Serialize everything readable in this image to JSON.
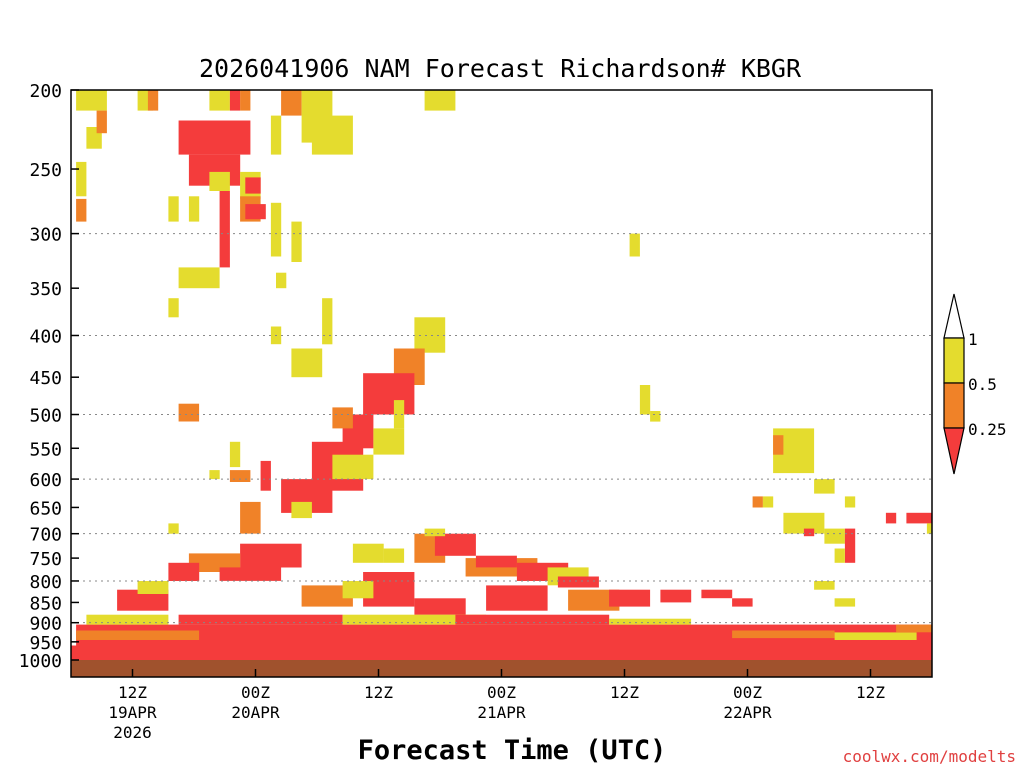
{
  "chart_data": {
    "type": "heatmap",
    "title": "2026041906 NAM Forecast Richardson# KBGR",
    "xlabel": "Forecast Time (UTC)",
    "ylabel": "",
    "credit": "coolwx.com/modelts",
    "y_scale": "log",
    "y_inverted": true,
    "y_range": [
      200,
      1000
    ],
    "y_ticks": [
      "200",
      "250",
      "300",
      "350",
      "400",
      "450",
      "500",
      "550",
      "600",
      "650",
      "700",
      "750",
      "800",
      "850",
      "900",
      "950",
      "1000"
    ],
    "y_gridlines": [
      300,
      400,
      500,
      600,
      700,
      800,
      900
    ],
    "x_ticks": [
      {
        "hour": 6,
        "label": "12Z",
        "date": "19APR",
        "year": "2026"
      },
      {
        "hour": 18,
        "label": "00Z",
        "date": "20APR",
        "year": ""
      },
      {
        "hour": 30,
        "label": "12Z",
        "date": "",
        "year": ""
      },
      {
        "hour": 42,
        "label": "00Z",
        "date": "21APR",
        "year": ""
      },
      {
        "hour": 54,
        "label": "12Z",
        "date": "",
        "year": ""
      },
      {
        "hour": 66,
        "label": "00Z",
        "date": "22APR",
        "year": ""
      },
      {
        "hour": 78,
        "label": "12Z",
        "date": "",
        "year": ""
      }
    ],
    "x_range_hours": [
      0,
      84
    ],
    "legend": {
      "placement": "right",
      "labels": [
        "1",
        "0.5",
        "0.25"
      ],
      "classes": [
        {
          "range": "0.5-1",
          "color": "#e4dc2e"
        },
        {
          "range": "0.25-0.5",
          "color": "#f08228"
        },
        {
          "range": "<0.25",
          "color": "#f43c3c"
        }
      ]
    },
    "colors": {
      "yellow": "#e4dc2e",
      "orange": "#f08228",
      "red": "#f43c3c",
      "ground": "#a0522d"
    },
    "regions": [
      {
        "c": "y",
        "h0": 0.5,
        "h1": 3.5,
        "p0": 200,
        "p1": 212
      },
      {
        "c": "y",
        "h0": 6.5,
        "h1": 8,
        "p0": 200,
        "p1": 212
      },
      {
        "c": "o",
        "h0": 7.5,
        "h1": 8.5,
        "p0": 200,
        "p1": 212
      },
      {
        "c": "y",
        "h0": 13.5,
        "h1": 15.5,
        "p0": 200,
        "p1": 212
      },
      {
        "c": "r",
        "h0": 15.5,
        "h1": 16.5,
        "p0": 200,
        "p1": 212
      },
      {
        "c": "o",
        "h0": 16.5,
        "h1": 17.5,
        "p0": 200,
        "p1": 212
      },
      {
        "c": "o",
        "h0": 20.5,
        "h1": 22.5,
        "p0": 200,
        "p1": 215
      },
      {
        "c": "y",
        "h0": 22.5,
        "h1": 25.5,
        "p0": 200,
        "p1": 232
      },
      {
        "c": "y",
        "h0": 23.5,
        "h1": 27.5,
        "p0": 215,
        "p1": 240
      },
      {
        "c": "y",
        "h0": 34.5,
        "h1": 37.5,
        "p0": 200,
        "p1": 212
      },
      {
        "c": "y",
        "h0": 1.5,
        "h1": 3,
        "p0": 222,
        "p1": 236
      },
      {
        "c": "o",
        "h0": 2.5,
        "h1": 3.5,
        "p0": 212,
        "p1": 226
      },
      {
        "c": "r",
        "h0": 10.5,
        "h1": 17.5,
        "p0": 218,
        "p1": 240
      },
      {
        "c": "r",
        "h0": 11.5,
        "h1": 16.5,
        "p0": 240,
        "p1": 262
      },
      {
        "c": "y",
        "h0": 13.5,
        "h1": 15.5,
        "p0": 252,
        "p1": 266
      },
      {
        "c": "y",
        "h0": 16.5,
        "h1": 18.5,
        "p0": 252,
        "p1": 272
      },
      {
        "c": "r",
        "h0": 17,
        "h1": 18.5,
        "p0": 256,
        "p1": 268
      },
      {
        "c": "y",
        "h0": 19.5,
        "h1": 20.5,
        "p0": 215,
        "p1": 240
      },
      {
        "c": "y",
        "h0": 0.5,
        "h1": 1.5,
        "p0": 245,
        "p1": 270
      },
      {
        "c": "o",
        "h0": 0.5,
        "h1": 1.5,
        "p0": 272,
        "p1": 290
      },
      {
        "c": "y",
        "h0": 9.5,
        "h1": 10.5,
        "p0": 270,
        "p1": 290
      },
      {
        "c": "y",
        "h0": 11.5,
        "h1": 12.5,
        "p0": 270,
        "p1": 290
      },
      {
        "c": "r",
        "h0": 14.5,
        "h1": 15.5,
        "p0": 266,
        "p1": 330
      },
      {
        "c": "o",
        "h0": 16.5,
        "h1": 18.5,
        "p0": 270,
        "p1": 290
      },
      {
        "c": "r",
        "h0": 17,
        "h1": 19,
        "p0": 276,
        "p1": 288
      },
      {
        "c": "y",
        "h0": 19.5,
        "h1": 20.5,
        "p0": 275,
        "p1": 320
      },
      {
        "c": "y",
        "h0": 21.5,
        "h1": 22.5,
        "p0": 290,
        "p1": 325
      },
      {
        "c": "y",
        "h0": 10.5,
        "h1": 14.5,
        "p0": 330,
        "p1": 350
      },
      {
        "c": "y",
        "h0": 20,
        "h1": 21,
        "p0": 335,
        "p1": 350
      },
      {
        "c": "y",
        "h0": 9.5,
        "h1": 10.5,
        "p0": 360,
        "p1": 380
      },
      {
        "c": "y",
        "h0": 24.5,
        "h1": 25.5,
        "p0": 360,
        "p1": 410
      },
      {
        "c": "y",
        "h0": 19.5,
        "h1": 20.5,
        "p0": 390,
        "p1": 410
      },
      {
        "c": "y",
        "h0": 21.5,
        "h1": 24.5,
        "p0": 415,
        "p1": 450
      },
      {
        "c": "y",
        "h0": 33.5,
        "h1": 36.5,
        "p0": 380,
        "p1": 420
      },
      {
        "c": "o",
        "h0": 31.5,
        "h1": 34.5,
        "p0": 415,
        "p1": 460
      },
      {
        "c": "r",
        "h0": 28.5,
        "h1": 33.5,
        "p0": 445,
        "p1": 500
      },
      {
        "c": "r",
        "h0": 26.5,
        "h1": 29.5,
        "p0": 500,
        "p1": 550
      },
      {
        "c": "o",
        "h0": 25.5,
        "h1": 27.5,
        "p0": 490,
        "p1": 520
      },
      {
        "c": "r",
        "h0": 23.5,
        "h1": 28.5,
        "p0": 540,
        "p1": 620
      },
      {
        "c": "r",
        "h0": 20.5,
        "h1": 25.5,
        "p0": 600,
        "p1": 660
      },
      {
        "c": "y",
        "h0": 29.5,
        "h1": 32.5,
        "p0": 520,
        "p1": 560
      },
      {
        "c": "y",
        "h0": 25.5,
        "h1": 29.5,
        "p0": 560,
        "p1": 600
      },
      {
        "c": "y",
        "h0": 31.5,
        "h1": 32.5,
        "p0": 480,
        "p1": 520
      },
      {
        "c": "o",
        "h0": 10.5,
        "h1": 12.5,
        "p0": 485,
        "p1": 510
      },
      {
        "c": "y",
        "h0": 15.5,
        "h1": 16.5,
        "p0": 540,
        "p1": 580
      },
      {
        "c": "o",
        "h0": 15.5,
        "h1": 17.5,
        "p0": 585,
        "p1": 605
      },
      {
        "c": "y",
        "h0": 13.5,
        "h1": 14.5,
        "p0": 585,
        "p1": 600
      },
      {
        "c": "r",
        "h0": 18.5,
        "h1": 19.5,
        "p0": 570,
        "p1": 620
      },
      {
        "c": "o",
        "h0": 16.5,
        "h1": 18.5,
        "p0": 640,
        "p1": 700
      },
      {
        "c": "y",
        "h0": 21.5,
        "h1": 23.5,
        "p0": 640,
        "p1": 670
      },
      {
        "c": "y",
        "h0": 9.5,
        "h1": 10.5,
        "p0": 680,
        "p1": 700
      },
      {
        "c": "y",
        "h0": 54.5,
        "h1": 55.5,
        "p0": 300,
        "p1": 320
      },
      {
        "c": "y",
        "h0": 55.5,
        "h1": 56.5,
        "p0": 460,
        "p1": 500
      },
      {
        "c": "y",
        "h0": 56.5,
        "h1": 57.5,
        "p0": 495,
        "p1": 510
      },
      {
        "c": "y",
        "h0": 68.5,
        "h1": 72.5,
        "p0": 520,
        "p1": 590
      },
      {
        "c": "o",
        "h0": 68.5,
        "h1": 69.5,
        "p0": 530,
        "p1": 560
      },
      {
        "c": "y",
        "h0": 72.5,
        "h1": 74.5,
        "p0": 600,
        "p1": 625
      },
      {
        "c": "o",
        "h0": 66.5,
        "h1": 67.5,
        "p0": 630,
        "p1": 650
      },
      {
        "c": "y",
        "h0": 67.5,
        "h1": 68.5,
        "p0": 630,
        "p1": 650
      },
      {
        "c": "y",
        "h0": 75.5,
        "h1": 76.5,
        "p0": 630,
        "p1": 650
      },
      {
        "c": "y",
        "h0": 69.5,
        "h1": 73.5,
        "p0": 660,
        "p1": 700
      },
      {
        "c": "r",
        "h0": 71.5,
        "h1": 72.5,
        "p0": 690,
        "p1": 705
      },
      {
        "c": "y",
        "h0": 73.5,
        "h1": 75.5,
        "p0": 690,
        "p1": 720
      },
      {
        "c": "r",
        "h0": 75.5,
        "h1": 76.5,
        "p0": 690,
        "p1": 760
      },
      {
        "c": "y",
        "h0": 74.5,
        "h1": 75.5,
        "p0": 730,
        "p1": 760
      },
      {
        "c": "r",
        "h0": 79.5,
        "h1": 80.5,
        "p0": 660,
        "p1": 680
      },
      {
        "c": "r",
        "h0": 81.5,
        "h1": 84,
        "p0": 660,
        "p1": 680
      },
      {
        "c": "y",
        "h0": 83.5,
        "h1": 84,
        "p0": 680,
        "p1": 700
      },
      {
        "c": "o",
        "h0": 33.5,
        "h1": 36.5,
        "p0": 700,
        "p1": 760
      },
      {
        "c": "r",
        "h0": 35.5,
        "h1": 39.5,
        "p0": 700,
        "p1": 745
      },
      {
        "c": "y",
        "h0": 34.5,
        "h1": 36.5,
        "p0": 690,
        "p1": 705
      },
      {
        "c": "y",
        "h0": 27.5,
        "h1": 30.5,
        "p0": 720,
        "p1": 760
      },
      {
        "c": "y",
        "h0": 30.5,
        "h1": 32.5,
        "p0": 730,
        "p1": 760
      },
      {
        "c": "r",
        "h0": 16.5,
        "h1": 22.5,
        "p0": 720,
        "p1": 770
      },
      {
        "c": "o",
        "h0": 11.5,
        "h1": 16.5,
        "p0": 740,
        "p1": 780
      },
      {
        "c": "r",
        "h0": 9.5,
        "h1": 12.5,
        "p0": 760,
        "p1": 800
      },
      {
        "c": "r",
        "h0": 14.5,
        "h1": 20.5,
        "p0": 770,
        "p1": 800
      },
      {
        "c": "o",
        "h0": 38.5,
        "h1": 45.5,
        "p0": 750,
        "p1": 790
      },
      {
        "c": "r",
        "h0": 39.5,
        "h1": 43.5,
        "p0": 745,
        "p1": 770
      },
      {
        "c": "r",
        "h0": 43.5,
        "h1": 48.5,
        "p0": 760,
        "p1": 800
      },
      {
        "c": "y",
        "h0": 46.5,
        "h1": 50.5,
        "p0": 770,
        "p1": 810
      },
      {
        "c": "r",
        "h0": 47.5,
        "h1": 51.5,
        "p0": 790,
        "p1": 815
      },
      {
        "c": "o",
        "h0": 48.5,
        "h1": 53.5,
        "p0": 820,
        "p1": 870
      },
      {
        "c": "r",
        "h0": 40.5,
        "h1": 46.5,
        "p0": 810,
        "p1": 870
      },
      {
        "c": "r",
        "h0": 52.5,
        "h1": 56.5,
        "p0": 820,
        "p1": 860
      },
      {
        "c": "r",
        "h0": 57.5,
        "h1": 60.5,
        "p0": 820,
        "p1": 850
      },
      {
        "c": "r",
        "h0": 61.5,
        "h1": 64.5,
        "p0": 820,
        "p1": 840
      },
      {
        "c": "r",
        "h0": 64.5,
        "h1": 66.5,
        "p0": 840,
        "p1": 860
      },
      {
        "c": "y",
        "h0": 72.5,
        "h1": 74.5,
        "p0": 800,
        "p1": 820
      },
      {
        "c": "y",
        "h0": 74.5,
        "h1": 76.5,
        "p0": 840,
        "p1": 860
      },
      {
        "c": "r",
        "h0": 28.5,
        "h1": 33.5,
        "p0": 780,
        "p1": 860
      },
      {
        "c": "o",
        "h0": 22.5,
        "h1": 27.5,
        "p0": 810,
        "p1": 860
      },
      {
        "c": "y",
        "h0": 26.5,
        "h1": 29.5,
        "p0": 800,
        "p1": 840
      },
      {
        "c": "r",
        "h0": 33.5,
        "h1": 38.5,
        "p0": 840,
        "p1": 880
      },
      {
        "c": "r",
        "h0": 4.5,
        "h1": 9.5,
        "p0": 820,
        "p1": 870
      },
      {
        "c": "y",
        "h0": 6.5,
        "h1": 9.5,
        "p0": 800,
        "p1": 830
      },
      {
        "c": "r",
        "h0": 0.5,
        "h1": 84,
        "p0": 905,
        "p1": 960
      },
      {
        "c": "r",
        "h0": 0,
        "h1": 84,
        "p0": 960,
        "p1": 1000
      },
      {
        "c": "r",
        "h0": 10.5,
        "h1": 26.5,
        "p0": 880,
        "p1": 905
      },
      {
        "c": "o",
        "h0": 0.5,
        "h1": 12.5,
        "p0": 920,
        "p1": 945
      },
      {
        "c": "y",
        "h0": 1.5,
        "h1": 9.5,
        "p0": 880,
        "p1": 905
      },
      {
        "c": "y",
        "h0": 26.5,
        "h1": 40.5,
        "p0": 880,
        "p1": 905
      },
      {
        "c": "r",
        "h0": 37.5,
        "h1": 52.5,
        "p0": 880,
        "p1": 905
      },
      {
        "c": "y",
        "h0": 52.5,
        "h1": 60.5,
        "p0": 890,
        "p1": 905
      },
      {
        "c": "o",
        "h0": 64.5,
        "h1": 74.5,
        "p0": 920,
        "p1": 940
      },
      {
        "c": "y",
        "h0": 74.5,
        "h1": 82.5,
        "p0": 925,
        "p1": 945
      },
      {
        "c": "o",
        "h0": 80.5,
        "h1": 84,
        "p0": 905,
        "p1": 925
      }
    ]
  }
}
